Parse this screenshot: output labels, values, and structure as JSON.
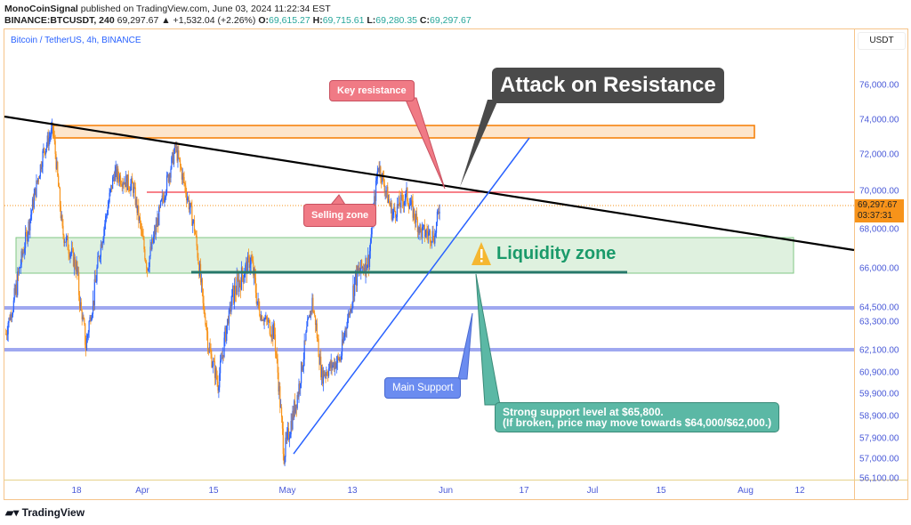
{
  "header": {
    "author": "MonoCoinSignal",
    "published": " published on TradingView.com, June 03, 2024 11:22:34 EST",
    "symbol": "BINANCE:BTCUSDT, 240",
    "last": "69,297.67",
    "change": "▲ +1,532.04 (+2.26%)",
    "o_label": "O:",
    "o": "69,615.27",
    "h_label": "H:",
    "h": "69,715.61",
    "l_label": "L:",
    "l": "69,280.35",
    "c_label": "C:",
    "c": "69,297.67"
  },
  "chart_title": "Bitcoin / TetherUS, 4h, BINANCE",
  "price_axis": {
    "unit": "USDT",
    "ticks": [
      "76,000.00",
      "74,000.00",
      "72,000.00",
      "70,000.00",
      "68,000.00",
      "66,000.00",
      "64,500.00",
      "63,300.00",
      "62,100.00",
      "60,900.00",
      "59,900.00",
      "58,900.00",
      "57,900.00",
      "57,000.00",
      "56,100.00"
    ],
    "current_price": "69,297.67",
    "countdown": "03:37:31"
  },
  "time_axis": [
    "18",
    "Apr",
    "15",
    "May",
    "13",
    "Jun",
    "17",
    "Jul",
    "15",
    "Aug",
    "12"
  ],
  "annotations": {
    "key_resistance": "Key resistance",
    "selling_zone": "Selling zone",
    "attack": "Attack on Resistance",
    "liquidity": "Liquidity zone",
    "main_support": "Main Support",
    "strong_support_1": "Strong support level at $65,800.",
    "strong_support_2": "(If broken, price may move towards $64,000/$62,000.)"
  },
  "colors": {
    "up": "#2962ff",
    "down": "#f7931a",
    "resistance": "#f23645",
    "support": "#26786a",
    "key_box": "#f07a85",
    "attack_box": "#4a4a4a",
    "main_support_box": "#6b8cf0",
    "strong_box": "#5bb8a5"
  },
  "footer": {
    "brand": "TradingView"
  },
  "chart_data": {
    "type": "candlestick",
    "approx_price_path": [
      [
        "2024-03-03",
        62800
      ],
      [
        "2024-03-06",
        66100
      ],
      [
        "2024-03-08",
        68400
      ],
      [
        "2024-03-11",
        72200
      ],
      [
        "2024-03-13",
        73500
      ],
      [
        "2024-03-15",
        67900
      ],
      [
        "2024-03-18",
        66100
      ],
      [
        "2024-03-20",
        62250
      ],
      [
        "2024-03-23",
        67000
      ],
      [
        "2024-03-26",
        71000
      ],
      [
        "2024-03-30",
        70250
      ],
      [
        "2024-04-02",
        66100
      ],
      [
        "2024-04-05",
        69300
      ],
      [
        "2024-04-08",
        72400
      ],
      [
        "2024-04-12",
        68100
      ],
      [
        "2024-04-15",
        62250
      ],
      [
        "2024-04-17",
        60400
      ],
      [
        "2024-04-20",
        64900
      ],
      [
        "2024-04-24",
        66500
      ],
      [
        "2024-04-26",
        63900
      ],
      [
        "2024-04-29",
        62800
      ],
      [
        "2024-05-01",
        57200
      ],
      [
        "2024-05-04",
        60000
      ],
      [
        "2024-05-07",
        64700
      ],
      [
        "2024-05-09",
        60800
      ],
      [
        "2024-05-13",
        61700
      ],
      [
        "2024-05-16",
        65600
      ],
      [
        "2024-05-19",
        66500
      ],
      [
        "2024-05-21",
        71500
      ],
      [
        "2024-05-24",
        68800
      ],
      [
        "2024-05-27",
        69800
      ],
      [
        "2024-05-30",
        67900
      ],
      [
        "2024-06-02",
        67700
      ],
      [
        "2024-06-03",
        69297.67
      ]
    ],
    "levels": {
      "resistance_zone": [
        73100,
        73700
      ],
      "key_resistance": 70000,
      "liquidity_zone": [
        65800,
        67600
      ],
      "strong_support": 65800,
      "support_1": 64000,
      "support_2": 62100
    }
  }
}
